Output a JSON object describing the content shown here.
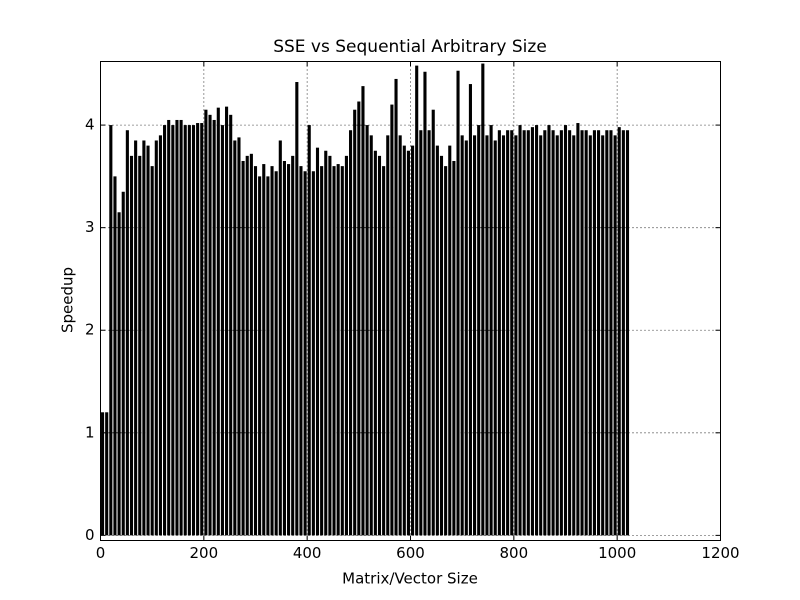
{
  "chart_data": {
    "type": "bar",
    "title": "SSE vs Sequential Arbitrary Size",
    "xlabel": "Matrix/Vector Size",
    "ylabel": "Speedup",
    "color": "#000000",
    "grid": true,
    "xlim": [
      0,
      1200
    ],
    "xticks": [
      0,
      200,
      400,
      600,
      800,
      1000,
      1200
    ],
    "ylim": [
      -0.05,
      4.62
    ],
    "yticks": [
      0,
      1,
      2,
      3,
      4
    ],
    "x": [
      4,
      12,
      20,
      28,
      36,
      44,
      52,
      60,
      68,
      76,
      84,
      92,
      100,
      108,
      116,
      124,
      132,
      140,
      148,
      156,
      164,
      172,
      180,
      188,
      196,
      204,
      212,
      220,
      228,
      236,
      244,
      252,
      260,
      268,
      276,
      284,
      292,
      300,
      308,
      316,
      324,
      332,
      340,
      348,
      356,
      364,
      372,
      380,
      388,
      396,
      404,
      412,
      420,
      428,
      436,
      444,
      452,
      460,
      468,
      476,
      484,
      492,
      500,
      508,
      516,
      524,
      532,
      540,
      548,
      556,
      564,
      572,
      580,
      588,
      596,
      604,
      612,
      620,
      628,
      636,
      644,
      652,
      660,
      668,
      676,
      684,
      692,
      700,
      708,
      716,
      724,
      732,
      740,
      748,
      756,
      764,
      772,
      780,
      788,
      796,
      804,
      812,
      820,
      828,
      836,
      844,
      852,
      860,
      868,
      876,
      884,
      892,
      900,
      908,
      916,
      924,
      932,
      940,
      948,
      956,
      964,
      972,
      980,
      988,
      996,
      1004,
      1012,
      1020
    ],
    "values": [
      1.2,
      1.2,
      4.0,
      3.5,
      3.15,
      3.35,
      3.95,
      3.7,
      3.85,
      3.7,
      3.85,
      3.8,
      3.6,
      3.85,
      3.9,
      4.0,
      4.05,
      4.0,
      4.05,
      4.05,
      4.0,
      4.0,
      4.0,
      4.02,
      4.02,
      4.15,
      4.1,
      4.05,
      4.17,
      4.0,
      4.18,
      4.1,
      3.85,
      3.88,
      3.65,
      3.7,
      3.72,
      3.6,
      3.5,
      3.62,
      3.5,
      3.6,
      3.55,
      3.85,
      3.65,
      3.62,
      3.7,
      4.42,
      3.6,
      3.55,
      4.0,
      3.55,
      3.78,
      3.6,
      3.75,
      3.7,
      3.6,
      3.62,
      3.6,
      3.7,
      3.95,
      4.15,
      4.23,
      4.38,
      4.0,
      3.9,
      3.75,
      3.7,
      3.6,
      3.9,
      4.2,
      4.45,
      3.9,
      3.8,
      3.75,
      3.8,
      4.58,
      3.95,
      4.52,
      3.95,
      4.15,
      3.8,
      3.7,
      3.6,
      3.8,
      3.65,
      4.53,
      3.9,
      3.85,
      4.4,
      3.9,
      4.0,
      4.6,
      3.9,
      4.0,
      3.85,
      3.95,
      3.9,
      3.95,
      3.95,
      3.9,
      4.0,
      3.95,
      3.95,
      3.98,
      4.0,
      3.9,
      3.95,
      4.0,
      3.95,
      3.9,
      3.95,
      4.0,
      3.95,
      3.9,
      4.02,
      3.95,
      3.95,
      3.9,
      3.95,
      3.95,
      3.9,
      3.95,
      3.95,
      3.9,
      3.98,
      3.95,
      3.95
    ]
  }
}
